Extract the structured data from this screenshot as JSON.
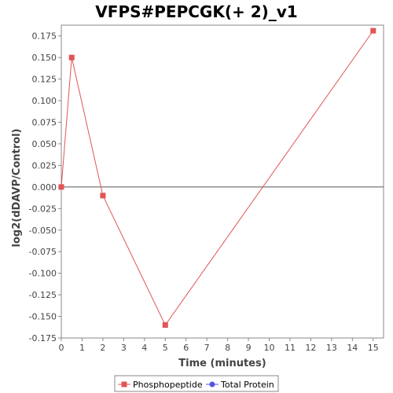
{
  "chart_data": {
    "type": "line",
    "title": "VFPS#PEPCGK(+ 2)_v1",
    "xlabel": "Time (minutes)",
    "ylabel": "log2(dDAVP/Control)",
    "xlim": [
      0,
      15.5
    ],
    "ylim": [
      -0.175,
      0.1875
    ],
    "xticks": [
      0,
      1,
      2,
      3,
      4,
      5,
      6,
      7,
      8,
      9,
      10,
      11,
      12,
      13,
      14,
      15
    ],
    "xtick_labels": [
      "0",
      "1",
      "2",
      "3",
      "4",
      "5",
      "6",
      "7",
      "8",
      "9",
      "10",
      "11",
      "12",
      "13",
      "14",
      "15"
    ],
    "yticks": [
      -0.175,
      -0.15,
      -0.125,
      -0.1,
      -0.075,
      -0.05,
      -0.025,
      0.0,
      0.025,
      0.05,
      0.075,
      0.1,
      0.125,
      0.15,
      0.175
    ],
    "ytick_labels": [
      "-0.175",
      "-0.150",
      "-0.125",
      "-0.100",
      "-0.075",
      "-0.050",
      "-0.025",
      "0.000",
      "0.025",
      "0.050",
      "0.075",
      "0.100",
      "0.125",
      "0.150",
      "0.175"
    ],
    "grid": false,
    "zero_line": true,
    "legend_position": "bottom",
    "series": [
      {
        "name": "Phosphopeptide",
        "color": "#e05555",
        "marker": "square",
        "x": [
          0,
          0.5,
          2,
          5,
          15
        ],
        "y": [
          0.0,
          0.15,
          -0.01,
          -0.16,
          0.181
        ]
      },
      {
        "name": "Total Protein",
        "color": "#5555e0",
        "marker": "circle",
        "x": [],
        "y": []
      }
    ]
  }
}
